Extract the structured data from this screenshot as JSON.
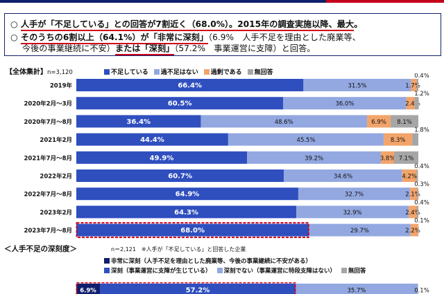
{
  "headline": {
    "circle": "○",
    "l1_a": "人手が「不足している」との回答が7割近く（68.0%）",
    "l1_b": "。2015年の調査実施以降、最大",
    "l1_c": "。",
    "l2_a": "そのうちの6割以上（64.1%）が「非常に深刻」",
    "l2_b": "（6.9%　人手不足を理由とした廃業等、",
    "l3_a": "今後の事業継続に不安）",
    "l3_b": "または「深刻」",
    "l3_c": "（57.2%　事業運営に支障）と回答。"
  },
  "section": {
    "title": "【全体集計】",
    "n": "n=3,120"
  },
  "legend": [
    {
      "label": "不足している",
      "color": "#2f4fbf"
    },
    {
      "label": "過不足はない",
      "color": "#93a8e0"
    },
    {
      "label": "過剰である",
      "color": "#f2a46a"
    },
    {
      "label": "無回答",
      "color": "#a6a6a6"
    }
  ],
  "chart_data": {
    "type": "bar",
    "stacked": true,
    "orientation": "horizontal",
    "categories": [
      "2019年",
      "2020年2月～3月",
      "2020年7月～8月",
      "2021年2月",
      "2021年7月～8月",
      "2022年2月",
      "2022年7月～8月",
      "2023年2月",
      "2023年7月～8月"
    ],
    "series": [
      {
        "name": "不足している",
        "color": "#2f4fbf",
        "values": [
          66.4,
          60.5,
          36.4,
          44.4,
          49.9,
          60.7,
          64.9,
          64.3,
          68.0
        ]
      },
      {
        "name": "過不足はない",
        "color": "#93a8e0",
        "values": [
          31.5,
          36.0,
          48.6,
          45.5,
          39.2,
          34.6,
          32.7,
          32.9,
          29.7
        ]
      },
      {
        "name": "過剰である",
        "color": "#f2a46a",
        "values": [
          1.7,
          2.4,
          6.9,
          8.3,
          3.8,
          4.2,
          2.1,
          2.4,
          2.2
        ]
      },
      {
        "name": "無回答",
        "color": "#a6a6a6",
        "values": [
          0.4,
          1.2,
          8.1,
          1.8,
          7.1,
          0.4,
          0.3,
          0.4,
          0.1
        ]
      }
    ],
    "labels": [
      [
        "66.4%",
        "31.5%",
        "1.7%",
        "0.4%"
      ],
      [
        "60.5%",
        "36.0%",
        "2.4%",
        "1.2%"
      ],
      [
        "36.4%",
        "48.6%",
        "6.9%",
        "8.1%"
      ],
      [
        "44.4%",
        "45.5%",
        "8.3%",
        "1.8%"
      ],
      [
        "49.9%",
        "39.2%",
        "3.8%",
        "7.1%"
      ],
      [
        "60.7%",
        "34.6%",
        "4.2%",
        "0.4%"
      ],
      [
        "64.9%",
        "32.7%",
        "2.1%",
        "0.3%"
      ],
      [
        "64.3%",
        "32.9%",
        "2.4%",
        "0.4%"
      ],
      [
        "68.0%",
        "29.7%",
        "2.2%",
        "0.1%"
      ]
    ],
    "xlim": [
      0,
      100
    ],
    "highlight_row": 8
  },
  "sub": {
    "title": "＜人手不足の深刻度＞",
    "n": "n＝2,121　※人手が「不足している」と回答した企業",
    "legend_row1": [
      {
        "label": "非常に深刻（人手不足を理由とした廃業等、今後の事業継続に不安がある）",
        "color": "#0f1f6b"
      }
    ],
    "legend_row2": [
      {
        "label": "深刻（事業運営に支障が生じている）",
        "color": "#2f4fbf"
      },
      {
        "label": "深刻でない（事業運営に特段支障はない）",
        "color": "#93a8e0"
      },
      {
        "label": "無回答",
        "color": "#a6a6a6"
      }
    ],
    "bar": {
      "values": [
        6.9,
        57.2,
        35.7,
        0.1
      ],
      "labels": [
        "6.9%",
        "57.2%",
        "35.7%",
        "0.1%"
      ]
    }
  }
}
